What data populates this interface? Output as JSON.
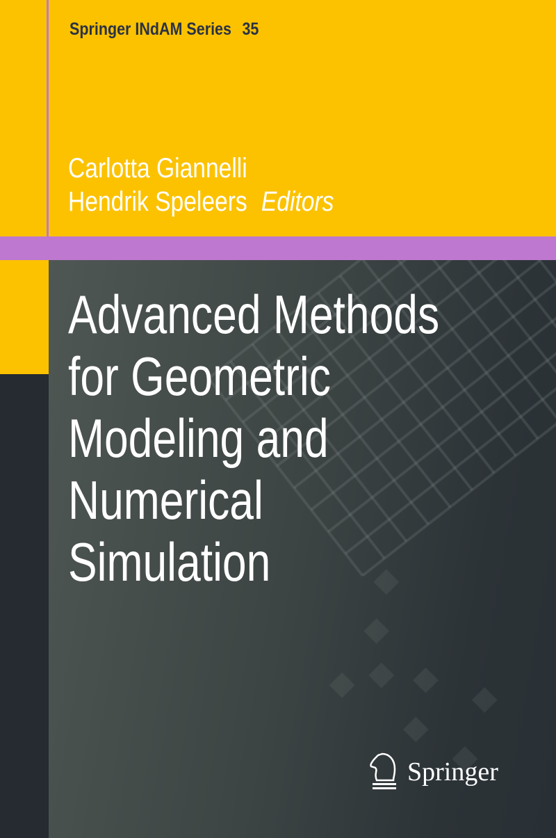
{
  "series": {
    "name": "Springer INdAM Series",
    "number": "35"
  },
  "editors": {
    "names": [
      "Carlotta Giannelli",
      "Hendrik Speleers"
    ],
    "role": "Editors"
  },
  "title": {
    "lines": [
      "Advanced Methods",
      "for Geometric",
      "Modeling and",
      "Numerical",
      "Simulation"
    ]
  },
  "publisher": {
    "name": "Springer",
    "logo_icon": "knight-chess-icon"
  },
  "colors": {
    "yellow": "#fcc200",
    "purple": "#be78d0",
    "dark": "#262c31",
    "series_text": "#2a3245"
  }
}
